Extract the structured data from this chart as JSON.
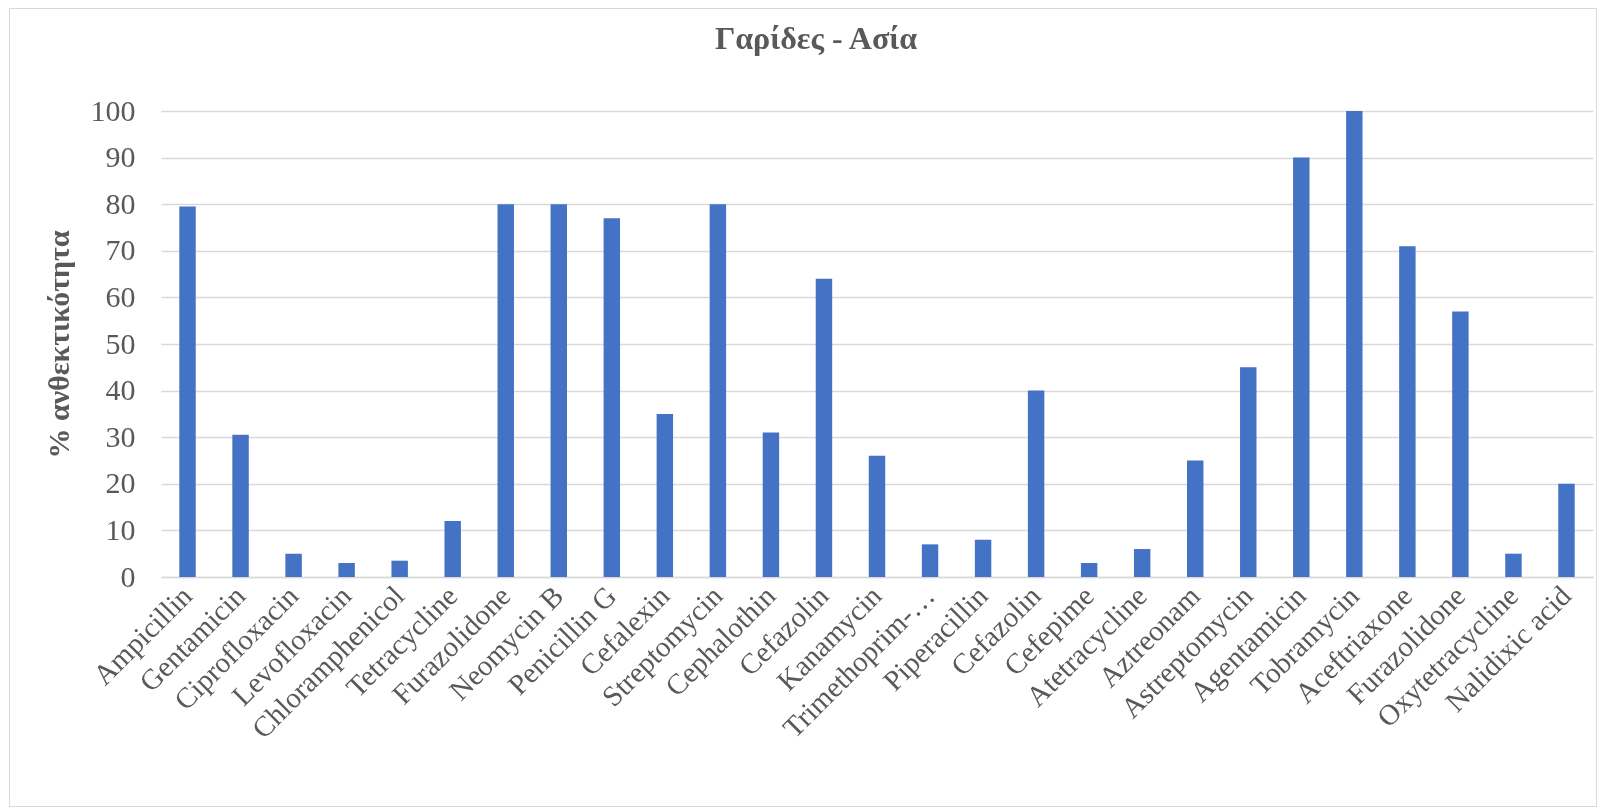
{
  "chart_data": {
    "type": "bar",
    "title": "Γαρίδες - Ασία",
    "ylabel": "% ανθεκτικότητα",
    "categories": [
      "Ampicillin",
      "Gentamicin",
      "Ciprofloxacin",
      "Levofloxacin",
      "Chloramphenicol",
      "Tetracycline",
      "Furazolidone",
      "Neomycin B",
      "Penicillin G",
      "Cefalexin",
      "Streptomycin",
      "Cephalothin",
      "Cefazolin",
      "Kanamycin",
      "Trimethoprim-…",
      "Piperacillin",
      "Cefazolin",
      "Cefepime",
      "Atetracycline",
      "Aztreonam",
      "Astreptomycin",
      "Agentamicin",
      "Tobramycin",
      "Aceftriaxone",
      "Furazolidone",
      "Oxytetracycline",
      "Nalidixic acid"
    ],
    "values": [
      79.5,
      30.5,
      5,
      3,
      3.5,
      12,
      80,
      80,
      77,
      35,
      80,
      31,
      64,
      26,
      7,
      8,
      40,
      3,
      6,
      25,
      45,
      90,
      100,
      71,
      57,
      5,
      20
    ],
    "color": "#4472c4",
    "ylim": [
      0,
      100
    ],
    "yticks": [
      0,
      10,
      20,
      30,
      40,
      50,
      60,
      70,
      80,
      90,
      100
    ],
    "grid": true
  }
}
